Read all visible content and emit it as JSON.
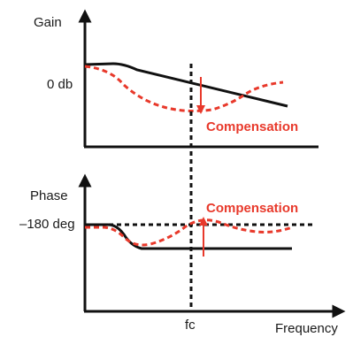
{
  "gain_panel": {
    "y_axis_label": "Gain",
    "reference_label": "0 db",
    "compensation_label": "Compensation"
  },
  "phase_panel": {
    "y_axis_label": "Phase",
    "reference_label": "–180 deg",
    "compensation_label": "Compensation",
    "x_axis_label": "Frequency",
    "crossover_label": "fc"
  },
  "colors": {
    "axis": "#111111",
    "response": "#111111",
    "compensation": "#e8392b"
  }
}
